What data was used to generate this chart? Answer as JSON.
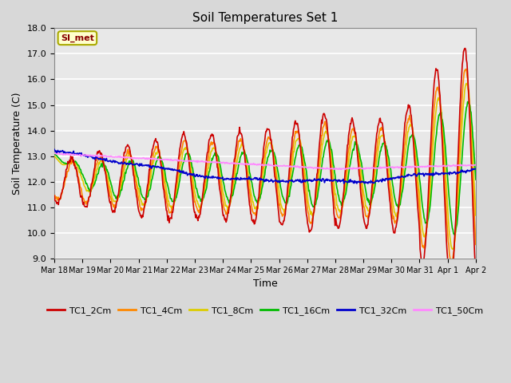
{
  "title": "Soil Temperatures Set 1",
  "xlabel": "Time",
  "ylabel": "Soil Temperature (C)",
  "ylim": [
    9.0,
    18.0
  ],
  "yticks": [
    9.0,
    10.0,
    11.0,
    12.0,
    13.0,
    14.0,
    15.0,
    16.0,
    17.0,
    18.0
  ],
  "xtick_labels": [
    "Mar 18",
    "Mar 19",
    "Mar 20",
    "Mar 21",
    "Mar 22",
    "Mar 23",
    "Mar 24",
    "Mar 25",
    "Mar 26",
    "Mar 27",
    "Mar 28",
    "Mar 29",
    "Mar 30",
    "Mar 31",
    "Apr 1",
    "Apr 2"
  ],
  "series_colors": [
    "#cc0000",
    "#ff8800",
    "#ddcc00",
    "#00bb00",
    "#0000cc",
    "#ff88ff"
  ],
  "series_names": [
    "TC1_2Cm",
    "TC1_4Cm",
    "TC1_8Cm",
    "TC1_16Cm",
    "TC1_32Cm",
    "TC1_50Cm"
  ],
  "bg_color": "#e8e8e8",
  "fig_color": "#d8d8d8",
  "watermark": "SI_met",
  "n_days": 15
}
